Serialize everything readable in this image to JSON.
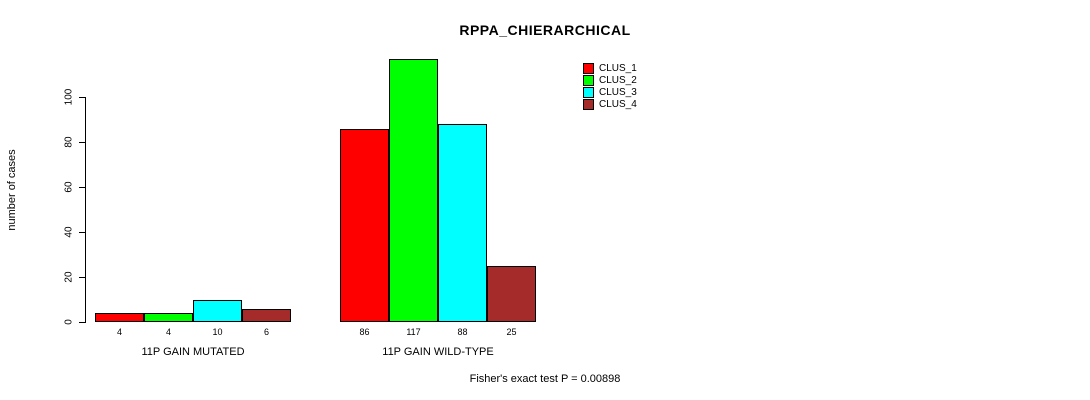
{
  "title": "RPPA_CHIERARCHICAL",
  "footer": "Fisher's exact test P = 0.00898",
  "chart_data": {
    "type": "bar",
    "title": "RPPA_CHIERARCHICAL",
    "xlabel": "",
    "ylabel": "number of cases",
    "ylim": [
      0,
      120
    ],
    "yticks": [
      0,
      20,
      40,
      60,
      80,
      100
    ],
    "grid": false,
    "legend_position": "top-right",
    "categories": [
      "11P GAIN MUTATED",
      "11P GAIN WILD-TYPE"
    ],
    "series": [
      {
        "name": "CLUS_1",
        "color": "#FF0000",
        "values": [
          4,
          86
        ]
      },
      {
        "name": "CLUS_2",
        "color": "#00FF00",
        "values": [
          4,
          117
        ]
      },
      {
        "name": "CLUS_3",
        "color": "#00FFFF",
        "values": [
          10,
          88
        ]
      },
      {
        "name": "CLUS_4",
        "color": "#A52A2A",
        "values": [
          6,
          25
        ]
      }
    ],
    "bar_labels": [
      [
        "4",
        "4",
        "10",
        "6"
      ],
      [
        "86",
        "117",
        "88",
        "25"
      ]
    ],
    "annotation": "Fisher's exact test P = 0.00898"
  }
}
